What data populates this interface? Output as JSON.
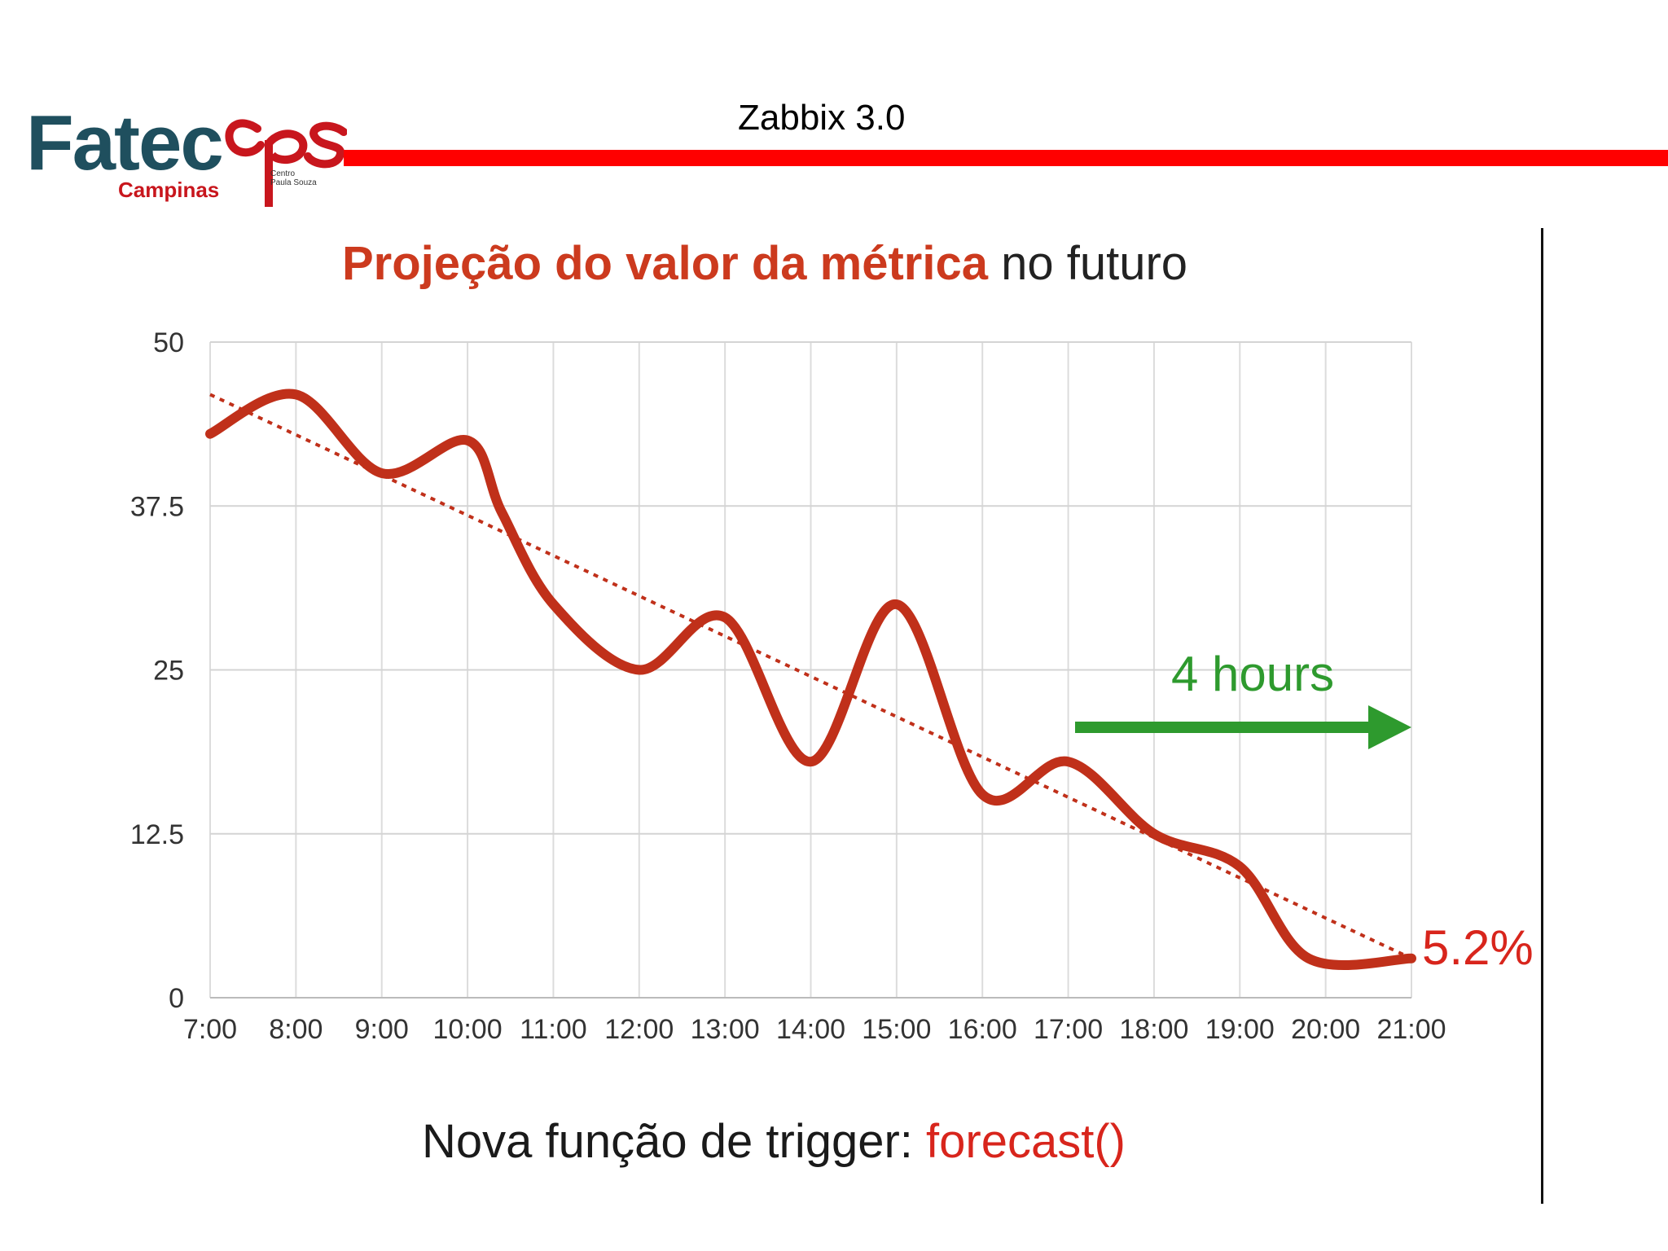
{
  "header": {
    "title": "Zabbix 3.0",
    "logo": {
      "main": "Fatec",
      "sub": "Campinas",
      "cps_mark": "cps",
      "cps_text_1": "Centro",
      "cps_text_2": "Paula Souza"
    },
    "bar_color": "#ff0000"
  },
  "chart_data": {
    "type": "line",
    "title_highlight": "Projeção do valor da métrica",
    "title_rest": " no futuro",
    "x": [
      "7:00",
      "8:00",
      "9:00",
      "10:00",
      "11:00",
      "12:00",
      "13:00",
      "14:00",
      "15:00",
      "16:00",
      "17:00",
      "18:00",
      "19:00",
      "20:00",
      "21:00"
    ],
    "yticks": [
      "0",
      "12.5",
      "25",
      "37.5",
      "50"
    ],
    "ylim": [
      0,
      50
    ],
    "grid": true,
    "series": [
      {
        "role": "metric",
        "color": "#c0301a",
        "points": [
          [
            0,
            43
          ],
          [
            1,
            46
          ],
          [
            2,
            40
          ],
          [
            3,
            42.5
          ],
          [
            3.4,
            37
          ],
          [
            4,
            30
          ],
          [
            5,
            25
          ],
          [
            6,
            29
          ],
          [
            7,
            18
          ],
          [
            8,
            30
          ],
          [
            9,
            15.5
          ],
          [
            10,
            18
          ],
          [
            11,
            12.5
          ],
          [
            12,
            10
          ],
          [
            12.8,
            3
          ],
          [
            14,
            3
          ]
        ]
      },
      {
        "role": "trend",
        "color": "#c0301a",
        "dashed": true,
        "points": [
          [
            0,
            46
          ],
          [
            14,
            3
          ]
        ]
      }
    ],
    "annotations": {
      "forecast_label": "4 hours",
      "forecast_color": "#2e9a2e",
      "end_value_label": "5.2%",
      "end_value_color": "#d8251c"
    }
  },
  "caption": {
    "prefix": "Nova função de trigger: ",
    "function": "forecast()"
  }
}
